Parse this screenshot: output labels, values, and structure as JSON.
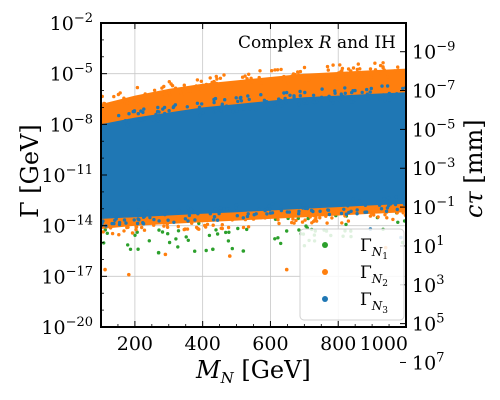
{
  "chart_data": {
    "type": "scatter",
    "annotation": "Complex R and IH",
    "xlabel": "M_N [GeV]",
    "ylabel_left": "Γ [GeV]",
    "ylabel_right": "cτ [mm]",
    "xlim": [
      100,
      1000
    ],
    "ylim_log10": [
      -20,
      -2
    ],
    "yscale": "log",
    "grid": true,
    "legend_position": "lower-right",
    "x_ticks": [
      "200",
      "400",
      "600",
      "800",
      "1000"
    ],
    "y_ticks_left": [
      {
        "base": "10",
        "exp": "−2",
        "log10": -2
      },
      {
        "base": "10",
        "exp": "−5",
        "log10": -5
      },
      {
        "base": "10",
        "exp": "−8",
        "log10": -8
      },
      {
        "base": "10",
        "exp": "−11",
        "log10": -11
      },
      {
        "base": "10",
        "exp": "−14",
        "log10": -14
      },
      {
        "base": "10",
        "exp": "−17",
        "log10": -17
      },
      {
        "base": "10",
        "exp": "−20",
        "log10": -20
      }
    ],
    "y_ticks_right": [
      {
        "base": "10",
        "exp": "−9",
        "gamma_log10": -3.7
      },
      {
        "base": "10",
        "exp": "−7",
        "gamma_log10": -6.0
      },
      {
        "base": "10",
        "exp": "−5",
        "gamma_log10": -8.3
      },
      {
        "base": "10",
        "exp": "−3",
        "gamma_log10": -10.6
      },
      {
        "base": "10",
        "exp": "−1",
        "gamma_log10": -12.9
      },
      {
        "base": "10",
        "exp": "1",
        "gamma_log10": -15.2
      },
      {
        "base": "10",
        "exp": "3",
        "gamma_log10": -17.5
      },
      {
        "base": "10",
        "exp": "5",
        "gamma_log10": -19.8
      },
      {
        "base": "10",
        "exp": "7",
        "gamma_log10": -22.1
      }
    ],
    "series": [
      {
        "name": "Γ_N3",
        "sub": "N",
        "subsub": "3",
        "color": "#1f77b4",
        "band_x": [
          100,
          200,
          300,
          400,
          500,
          600,
          700,
          800,
          900,
          1000
        ],
        "band_upper_log10": [
          -8.0,
          -7.6,
          -7.3,
          -7.0,
          -6.8,
          -6.6,
          -6.4,
          -6.3,
          -6.2,
          -6.1
        ],
        "band_lower_log10": [
          -13.6,
          -13.5,
          -13.4,
          -13.3,
          -13.2,
          -13.1,
          -13.0,
          -12.9,
          -12.8,
          -12.7
        ]
      },
      {
        "name": "Γ_N2",
        "sub": "N",
        "subsub": "2",
        "color": "#ff7f0e",
        "band_x": [
          100,
          200,
          300,
          400,
          500,
          600,
          700,
          800,
          900,
          1000
        ],
        "band_upper_log10": [
          -6.8,
          -6.3,
          -5.9,
          -5.6,
          -5.4,
          -5.2,
          -5.0,
          -4.9,
          -4.8,
          -4.7
        ],
        "band_lower_log10": [
          -14.2,
          -14.0,
          -13.9,
          -13.8,
          -13.7,
          -13.6,
          -13.5,
          -13.4,
          -13.3,
          -13.2
        ]
      },
      {
        "name": "Γ_N1",
        "sub": "N",
        "subsub": "1",
        "color": "#2ca02c",
        "band_x": [
          100,
          200,
          300,
          400,
          500,
          600,
          700,
          800,
          900,
          1000
        ],
        "band_upper_log10": [
          -13.4,
          -13.3,
          -13.2,
          -13.1,
          -13.0,
          -12.9,
          -12.8,
          -12.7,
          -12.6,
          -12.5
        ],
        "band_lower_log10": [
          -15.8,
          -15.7,
          -15.6,
          -15.5,
          -15.4,
          -15.3,
          -15.2,
          -15.1,
          -15.0,
          -14.9
        ]
      }
    ],
    "outliers": [
      {
        "series": "Γ_N2",
        "x": 112,
        "y_log10": -16.6
      },
      {
        "series": "Γ_N2",
        "x": 182,
        "y_log10": -16.9
      },
      {
        "series": "Γ_N2",
        "x": 290,
        "y_log10": -15.7
      },
      {
        "series": "Γ_N2",
        "x": 480,
        "y_log10": -15.8
      },
      {
        "series": "Γ_N2",
        "x": 648,
        "y_log10": -16.6
      },
      {
        "series": "Γ_N2",
        "x": 940,
        "y_log10": -15.3
      },
      {
        "series": "Γ_N1",
        "x": 270,
        "y_log10": -15.6
      },
      {
        "series": "Γ_N1",
        "x": 430,
        "y_log10": -15.4
      },
      {
        "series": "Γ_N1",
        "x": 520,
        "y_log10": -15.5
      },
      {
        "series": "Γ_N1",
        "x": 990,
        "y_log10": -15.0
      },
      {
        "series": "Γ_N3",
        "x": 895,
        "y_log10": -14.2
      },
      {
        "series": "Γ_N3",
        "x": 985,
        "y_log10": -14.7
      }
    ]
  }
}
